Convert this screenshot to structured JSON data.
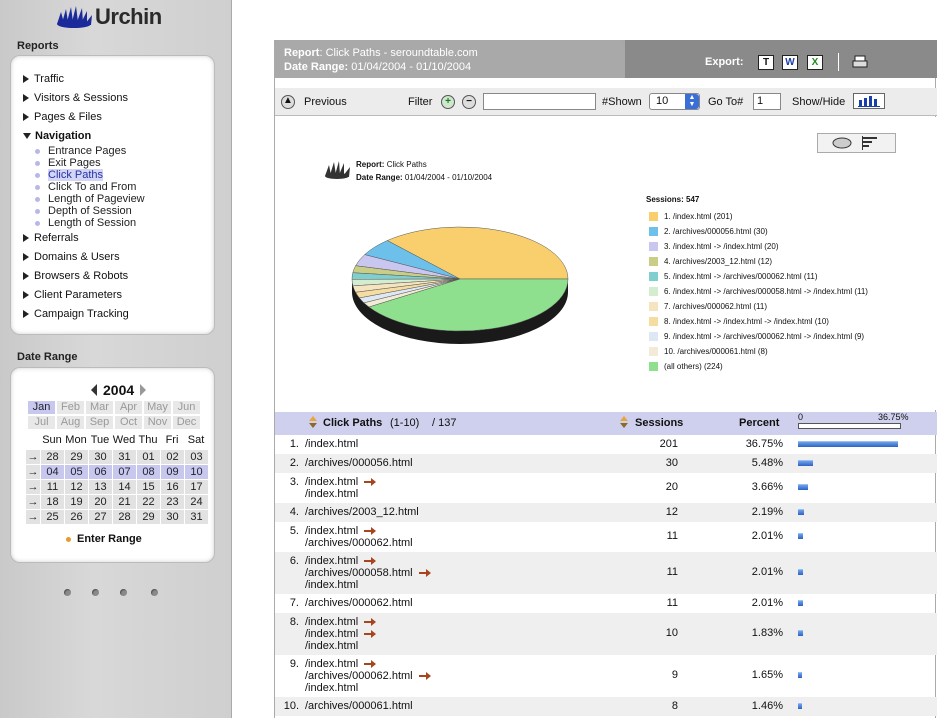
{
  "app": {
    "logo_text": "Urchin"
  },
  "sidebar": {
    "reports_title": "Reports",
    "nav": [
      {
        "label": "Traffic",
        "expanded": false
      },
      {
        "label": "Visitors & Sessions",
        "expanded": false
      },
      {
        "label": "Pages & Files",
        "expanded": false
      },
      {
        "label": "Navigation",
        "expanded": true
      },
      {
        "label": "Referrals",
        "expanded": false
      },
      {
        "label": "Domains & Users",
        "expanded": false
      },
      {
        "label": "Browsers & Robots",
        "expanded": false
      },
      {
        "label": "Client Parameters",
        "expanded": false
      },
      {
        "label": "Campaign Tracking",
        "expanded": false
      }
    ],
    "sub_items": [
      "Entrance Pages",
      "Exit Pages",
      "Click Paths",
      "Click To and From",
      "Length of Pageview",
      "Depth of Session",
      "Length of Session"
    ],
    "active_sub": "Click Paths",
    "date_range_title": "Date Range",
    "calendar": {
      "year": "2004",
      "months": [
        "Jan",
        "Feb",
        "Mar",
        "Apr",
        "May",
        "Jun",
        "Jul",
        "Aug",
        "Sep",
        "Oct",
        "Nov",
        "Dec"
      ],
      "selected_month": "Jan",
      "day_headers": [
        "Sun",
        "Mon",
        "Tue",
        "Wed",
        "Thu",
        "Fri",
        "Sat"
      ],
      "weeks": [
        [
          "28",
          "29",
          "30",
          "31",
          "01",
          "02",
          "03"
        ],
        [
          "04",
          "05",
          "06",
          "07",
          "08",
          "09",
          "10"
        ],
        [
          "11",
          "12",
          "13",
          "14",
          "15",
          "16",
          "17"
        ],
        [
          "18",
          "19",
          "20",
          "21",
          "22",
          "23",
          "24"
        ],
        [
          "25",
          "26",
          "27",
          "28",
          "29",
          "30",
          "31"
        ]
      ],
      "week_arrow": "→",
      "enter_range": "Enter Range"
    }
  },
  "header": {
    "report_label": "Report",
    "report_value": "Click Paths - seroundtable.com",
    "range_label": "Date Range:",
    "range_value": "01/04/2004 - 01/10/2004",
    "export_label": "Export:",
    "export_icons": [
      "T",
      "W",
      "X"
    ]
  },
  "toolbar": {
    "previous": "Previous",
    "filter": "Filter",
    "shown_label": "#Shown",
    "shown_value": "10",
    "goto_label": "Go To#",
    "goto_value": "1",
    "showhide": "Show/Hide"
  },
  "chart_caption": {
    "report_label": "Report:",
    "report_value": "Click Paths",
    "range_label": "Date Range:",
    "range_value": "01/04/2004 - 01/10/2004"
  },
  "legend": {
    "sessions_label": "Sessions: 547",
    "items": [
      {
        "label": "1. /index.html (201)",
        "color": "#f9cf6e"
      },
      {
        "label": "2. /archives/000056.html (30)",
        "color": "#6cc0ea"
      },
      {
        "label": "3. /index.html -> /index.html (20)",
        "color": "#c9c6f0"
      },
      {
        "label": "4. /archives/2003_12.html (12)",
        "color": "#c9cd86"
      },
      {
        "label": "5. /index.html -> /archives/000062.html (11)",
        "color": "#7fcfcf"
      },
      {
        "label": "6. /index.html -> /archives/000058.html -> /index.html (11)",
        "color": "#d4ecd0"
      },
      {
        "label": "7. /archives/000062.html (11)",
        "color": "#f5e4bf"
      },
      {
        "label": "8. /index.html -> /index.html -> /index.html (10)",
        "color": "#f5dca0"
      },
      {
        "label": "9. /index.html -> /archives/000062.html -> /index.html (9)",
        "color": "#dde8f4"
      },
      {
        "label": "10. /archives/000061.html (8)",
        "color": "#f2ecd6"
      },
      {
        "label": "(all others) (224)",
        "color": "#8ee08e"
      }
    ]
  },
  "chart_data": {
    "type": "pie",
    "title": "Click Paths",
    "categories": [
      "1. /index.html",
      "2. /archives/000056.html",
      "3. /index.html -> /index.html",
      "4. /archives/2003_12.html",
      "5. /index.html -> /archives/000062.html",
      "6. /index.html -> /archives/000058.html -> /index.html",
      "7. /archives/000062.html",
      "8. /index.html -> /index.html -> /index.html",
      "9. /index.html -> /archives/000062.html -> /index.html",
      "10. /archives/000061.html",
      "(all others)"
    ],
    "values": [
      201,
      30,
      20,
      12,
      11,
      11,
      11,
      10,
      9,
      8,
      224
    ],
    "colors": [
      "#f9cf6e",
      "#6cc0ea",
      "#c9c6f0",
      "#c9cd86",
      "#7fcfcf",
      "#d4ecd0",
      "#f5e4bf",
      "#f5dca0",
      "#dde8f4",
      "#f2ecd6",
      "#8ee08e"
    ]
  },
  "table": {
    "col_path": "Click Paths",
    "range_info": "(1-10)",
    "total_info": "/ 137",
    "col_sessions": "Sessions",
    "col_percent": "Percent",
    "scale_min": "0",
    "scale_max": "36.75%",
    "rows": [
      {
        "n": "1.",
        "paths": [
          "/index.html"
        ],
        "sessions": "201",
        "percent": "36.75%",
        "pct": 36.75
      },
      {
        "n": "2.",
        "paths": [
          "/archives/000056.html"
        ],
        "sessions": "30",
        "percent": "5.48%",
        "pct": 5.48
      },
      {
        "n": "3.",
        "paths": [
          "/index.html",
          "/index.html"
        ],
        "sessions": "20",
        "percent": "3.66%",
        "pct": 3.66
      },
      {
        "n": "4.",
        "paths": [
          "/archives/2003_12.html"
        ],
        "sessions": "12",
        "percent": "2.19%",
        "pct": 2.19
      },
      {
        "n": "5.",
        "paths": [
          "/index.html",
          "/archives/000062.html"
        ],
        "sessions": "11",
        "percent": "2.01%",
        "pct": 2.01
      },
      {
        "n": "6.",
        "paths": [
          "/index.html",
          "/archives/000058.html",
          "/index.html"
        ],
        "sessions": "11",
        "percent": "2.01%",
        "pct": 2.01
      },
      {
        "n": "7.",
        "paths": [
          "/archives/000062.html"
        ],
        "sessions": "11",
        "percent": "2.01%",
        "pct": 2.01
      },
      {
        "n": "8.",
        "paths": [
          "/index.html",
          "/index.html",
          "/index.html"
        ],
        "sessions": "10",
        "percent": "1.83%",
        "pct": 1.83
      },
      {
        "n": "9.",
        "paths": [
          "/index.html",
          "/archives/000062.html",
          "/index.html"
        ],
        "sessions": "9",
        "percent": "1.65%",
        "pct": 1.65
      },
      {
        "n": "10.",
        "paths": [
          "/archives/000061.html"
        ],
        "sessions": "8",
        "percent": "1.46%",
        "pct": 1.46
      }
    ]
  }
}
